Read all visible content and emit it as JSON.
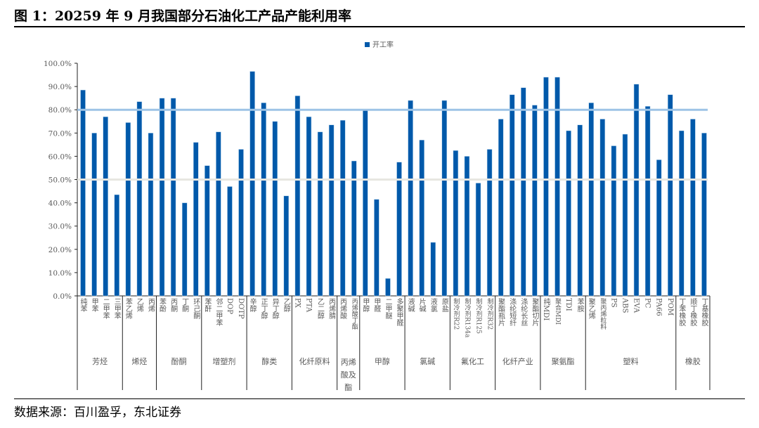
{
  "title": "图 1：20259 年 9 月我国部分石油化工产品产能利用率",
  "source": "数据来源：百川盈孚，东北证券",
  "colors": {
    "bar": "#0059AA",
    "line80": "#9DC3E6",
    "line50": "#E7E6E1"
  },
  "chart_data": {
    "type": "bar",
    "title": "图 1：20259 年 9 月我国部分石油化工产品产能利用率",
    "legend": [
      "开工率"
    ],
    "legend_position": "top-center",
    "ylim": [
      0,
      100
    ],
    "yticks": [
      "0.0%",
      "10.0%",
      "20.0%",
      "30.0%",
      "40.0%",
      "50.0%",
      "60.0%",
      "70.0%",
      "80.0%",
      "90.0%",
      "100.0%"
    ],
    "reference_lines": [
      80,
      50
    ],
    "groups": [
      {
        "name": "芳烃",
        "items": [
          [
            "纯苯",
            88.5
          ],
          [
            "甲苯",
            70
          ],
          [
            "二甲苯",
            77
          ],
          [
            "三甲苯",
            43.5
          ]
        ]
      },
      {
        "name": "烯烃",
        "items": [
          [
            "苯乙烯",
            74.5
          ],
          [
            "乙烯",
            83.5
          ],
          [
            "丙烯",
            70
          ]
        ]
      },
      {
        "name": "酚酮",
        "items": [
          [
            "苯酚",
            85
          ],
          [
            "丙酮",
            85
          ],
          [
            "丁酮",
            40
          ],
          [
            "环己酮",
            66
          ]
        ]
      },
      {
        "name": "增塑剂",
        "items": [
          [
            "苯酐",
            56
          ],
          [
            "邻二甲苯",
            70.5
          ],
          [
            "DOP",
            47
          ],
          [
            "DOTP",
            63
          ]
        ]
      },
      {
        "name": "醇类",
        "items": [
          [
            "辛醇",
            96.5
          ],
          [
            "正丁醇",
            83
          ],
          [
            "异丁醇",
            75
          ],
          [
            "乙醇",
            43
          ]
        ]
      },
      {
        "name": "化纤原料",
        "items": [
          [
            "PX",
            86
          ],
          [
            "PTA",
            77
          ],
          [
            "乙二醇",
            70.5
          ],
          [
            "丙烯腈",
            73.5
          ]
        ]
      },
      {
        "name": "丙烯酸及酯",
        "items": [
          [
            "丙烯酸",
            75.5
          ],
          [
            "丙烯酸丁酯",
            58
          ]
        ]
      },
      {
        "name": "甲醇",
        "items": [
          [
            "甲醇",
            80
          ],
          [
            "甲醛",
            41.5
          ],
          [
            "二甲醚",
            7.5
          ],
          [
            "多聚甲醛",
            57.5
          ]
        ]
      },
      {
        "name": "氯碱",
        "items": [
          [
            "液碱",
            84
          ],
          [
            "片碱",
            67
          ],
          [
            "液氯",
            23
          ],
          [
            "原盐",
            84
          ]
        ]
      },
      {
        "name": "氟化工",
        "items": [
          [
            "制冷剂R22",
            62.5
          ],
          [
            "制冷剂R134a",
            60
          ],
          [
            "制冷剂R125",
            48.5
          ],
          [
            "制冷剂R32",
            63
          ]
        ]
      },
      {
        "name": "化纤产业",
        "items": [
          [
            "聚酯瓶片",
            76
          ],
          [
            "涤纶短纤",
            86.5
          ],
          [
            "涤纶长丝",
            89.5
          ],
          [
            "聚酯切片",
            82
          ]
        ]
      },
      {
        "name": "聚氨酯",
        "items": [
          [
            "纯MDI",
            94
          ],
          [
            "聚合MDI",
            94
          ],
          [
            "TDI",
            71
          ],
          [
            "苯胺",
            73.5
          ]
        ]
      },
      {
        "name": "塑料",
        "items": [
          [
            "聚乙烯",
            83
          ],
          [
            "聚丙烯粒料",
            76
          ],
          [
            "PS",
            64.5
          ],
          [
            "ABS",
            69.5
          ],
          [
            "EVA",
            91
          ],
          [
            "PC",
            81.5
          ],
          [
            "PA66",
            58.5
          ],
          [
            "POM",
            86.5
          ]
        ]
      },
      {
        "name": "橡胶",
        "items": [
          [
            "丁苯橡胶",
            71
          ],
          [
            "顺丁橡胶",
            76
          ],
          [
            "丁基橡胶",
            70
          ]
        ]
      }
    ]
  }
}
